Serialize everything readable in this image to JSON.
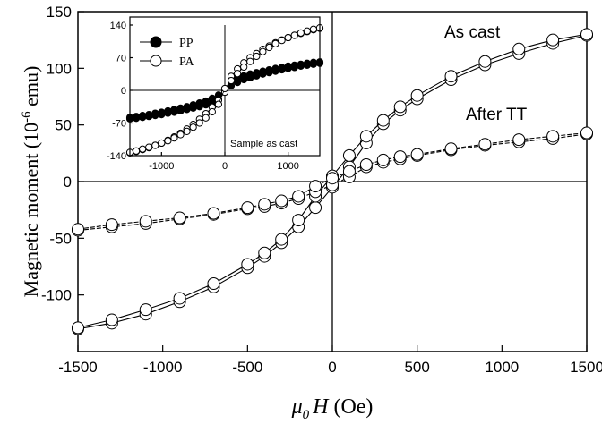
{
  "chart_data": [
    {
      "type": "line",
      "xlabel": "μ₀H (Oe)",
      "xlabel_symbol": "μ",
      "xlabel_sub": "0",
      "xlabel_var": "H",
      "xlabel_unit": "(Oe)",
      "ylabel": "Magnetic moment (10⁻⁶ emu)",
      "ylabel_main": "Magnetic moment (10",
      "ylabel_exp": "-6",
      "ylabel_unit": " emu)",
      "xlim": [
        -1500,
        1500
      ],
      "ylim": [
        -150,
        150
      ],
      "xticks": [
        -1500,
        -1000,
        -500,
        0,
        500,
        1000,
        1500
      ],
      "yticks": [
        -100,
        -50,
        0,
        50,
        100,
        150
      ],
      "annotations": [
        "As cast",
        "After TT"
      ],
      "series": [
        {
          "name": "As cast",
          "x": [
            -1500,
            -1300,
            -1100,
            -900,
            -700,
            -500,
            -400,
            -300,
            -200,
            -100,
            0,
            100,
            200,
            300,
            400,
            500,
            700,
            900,
            1100,
            1300,
            1500
          ],
          "y_branch_up": [
            -130,
            -125,
            -117,
            -106,
            -93,
            -76,
            -66,
            -54,
            -40,
            -23,
            -5,
            13,
            34,
            51,
            63,
            73,
            90,
            103,
            113,
            122,
            129
          ],
          "y_branch_down": [
            -129,
            -122,
            -113,
            -103,
            -90,
            -73,
            -63,
            -51,
            -34,
            -13,
            5,
            23,
            40,
            54,
            66,
            76,
            93,
            106,
            117,
            125,
            130
          ]
        },
        {
          "name": "After TT",
          "x": [
            -1500,
            -1300,
            -1100,
            -900,
            -700,
            -500,
            -400,
            -300,
            -200,
            -100,
            0,
            100,
            200,
            300,
            400,
            500,
            700,
            900,
            1100,
            1300,
            1500
          ],
          "y_branch_up": [
            -43,
            -40,
            -37,
            -33,
            -29,
            -24,
            -22,
            -19,
            -15,
            -9,
            -3,
            4,
            13,
            17,
            20,
            23,
            28,
            32,
            35,
            38,
            42
          ],
          "y_branch_down": [
            -42,
            -38,
            -35,
            -32,
            -28,
            -23,
            -20,
            -17,
            -13,
            -4,
            3,
            9,
            15,
            19,
            22,
            24,
            29,
            33,
            37,
            40,
            43
          ]
        }
      ]
    },
    {
      "type": "line",
      "inset": true,
      "xlim": [
        -1500,
        1500
      ],
      "ylim": [
        -140,
        140
      ],
      "xticks": [
        -1000,
        0,
        1000
      ],
      "yticks": [
        -140,
        -70,
        0,
        70,
        140
      ],
      "annotation": "Sample as cast",
      "legend": {
        "placement": "top-left",
        "entries": [
          "PP",
          "PA"
        ]
      },
      "series": [
        {
          "name": "PP",
          "marker": "filled-circle",
          "x": [
            -1500,
            -1400,
            -1300,
            -1200,
            -1100,
            -1000,
            -900,
            -800,
            -700,
            -600,
            -500,
            -400,
            -300,
            -200,
            -100,
            0,
            100,
            200,
            300,
            400,
            500,
            600,
            700,
            800,
            900,
            1000,
            1100,
            1200,
            1300,
            1400,
            1500
          ],
          "y_branch_up": [
            -58,
            -56,
            -54,
            -52,
            -49,
            -47,
            -44,
            -41,
            -38,
            -35,
            -31,
            -27,
            -23,
            -17,
            -10,
            -2,
            20,
            27,
            31,
            35,
            38,
            41,
            44,
            47,
            49,
            52,
            54,
            56,
            58,
            60,
            61
          ],
          "y_branch_down": [
            -61,
            -60,
            -58,
            -56,
            -54,
            -52,
            -49,
            -47,
            -44,
            -41,
            -38,
            -35,
            -31,
            -27,
            -20,
            2,
            10,
            17,
            23,
            27,
            31,
            35,
            38,
            41,
            44,
            47,
            49,
            52,
            54,
            56,
            58
          ]
        },
        {
          "name": "PA",
          "marker": "open-circle",
          "x": [
            -1500,
            -1400,
            -1300,
            -1200,
            -1100,
            -1000,
            -900,
            -800,
            -700,
            -600,
            -500,
            -400,
            -300,
            -200,
            -100,
            0,
            100,
            200,
            300,
            400,
            500,
            600,
            700,
            800,
            900,
            1000,
            1100,
            1200,
            1300,
            1400,
            1500
          ],
          "y_branch_up": [
            -134,
            -131,
            -127,
            -123,
            -118,
            -113,
            -107,
            -100,
            -92,
            -83,
            -73,
            -62,
            -50,
            -36,
            -21,
            -4,
            30,
            46,
            59,
            70,
            79,
            88,
            95,
            102,
            108,
            113,
            118,
            122,
            126,
            130,
            133
          ],
          "y_branch_down": [
            -133,
            -130,
            -126,
            -122,
            -118,
            -113,
            -108,
            -102,
            -95,
            -88,
            -79,
            -70,
            -59,
            -46,
            -30,
            4,
            21,
            36,
            50,
            62,
            73,
            83,
            92,
            100,
            107,
            113,
            118,
            123,
            127,
            131,
            134
          ]
        }
      ]
    }
  ]
}
